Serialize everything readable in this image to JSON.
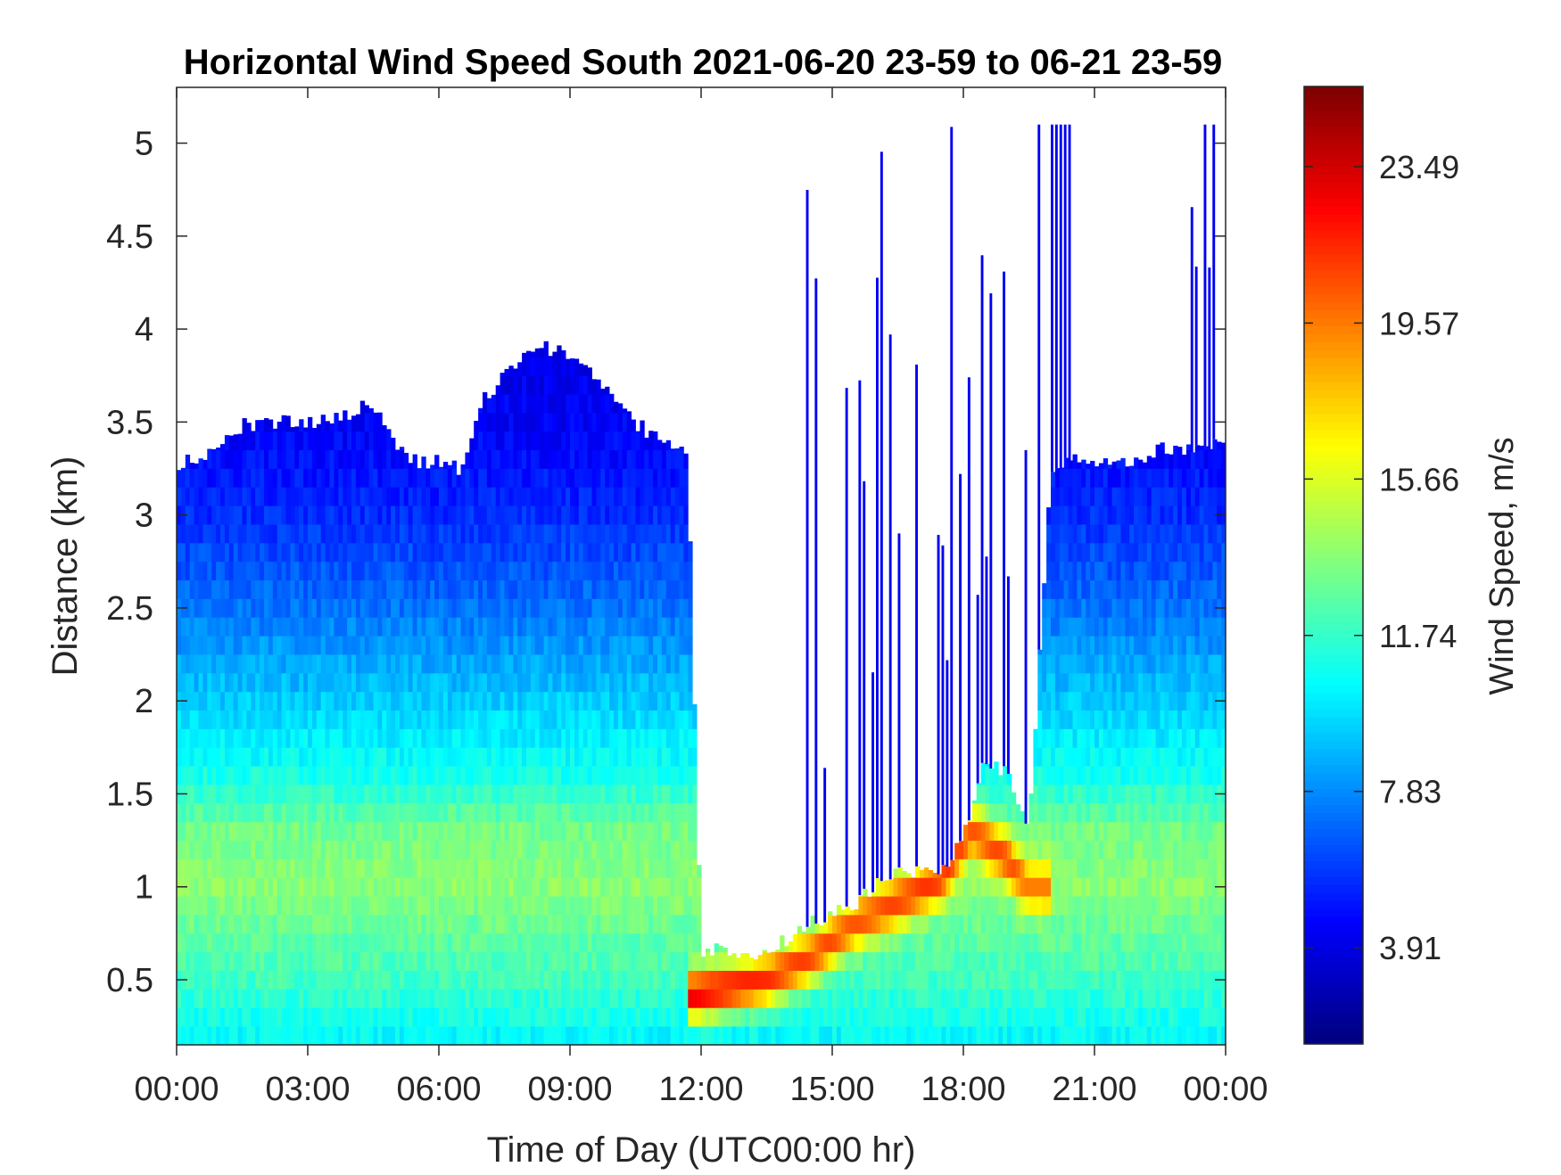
{
  "chart_data": {
    "type": "heatmap",
    "title": "Horizontal Wind Speed South 2021-06-20 23-59 to 06-21 23-59",
    "xlabel": "Time of Day (UTC00:00 hr)",
    "ylabel": "Distance (km)",
    "colorbar_label": "Wind Speed, m/s",
    "colormap": "jet",
    "xlim_hours": [
      0,
      24
    ],
    "ylim": [
      0.15,
      5.3
    ],
    "clim": [
      1.5,
      25.5
    ],
    "x_ticks": [
      {
        "value": 0,
        "label": "00:00"
      },
      {
        "value": 3,
        "label": "03:00"
      },
      {
        "value": 6,
        "label": "06:00"
      },
      {
        "value": 9,
        "label": "09:00"
      },
      {
        "value": 12,
        "label": "12:00"
      },
      {
        "value": 15,
        "label": "15:00"
      },
      {
        "value": 18,
        "label": "18:00"
      },
      {
        "value": 21,
        "label": "21:00"
      },
      {
        "value": 24,
        "label": "00:00"
      }
    ],
    "y_ticks": [
      {
        "value": 0.5,
        "label": "0.5"
      },
      {
        "value": 1,
        "label": "1"
      },
      {
        "value": 1.5,
        "label": "1.5"
      },
      {
        "value": 2,
        "label": "2"
      },
      {
        "value": 2.5,
        "label": "2.5"
      },
      {
        "value": 3,
        "label": "3"
      },
      {
        "value": 3.5,
        "label": "3.5"
      },
      {
        "value": 4,
        "label": "4"
      },
      {
        "value": 4.5,
        "label": "4.5"
      },
      {
        "value": 5,
        "label": "5"
      }
    ],
    "colorbar_ticks": [
      {
        "value": 3.91,
        "label": "3.91"
      },
      {
        "value": 7.83,
        "label": "7.83"
      },
      {
        "value": 11.74,
        "label": "11.74"
      },
      {
        "value": 15.66,
        "label": "15.66"
      },
      {
        "value": 19.57,
        "label": "19.57"
      },
      {
        "value": 23.49,
        "label": "23.49"
      }
    ],
    "data_ceiling_km": [
      {
        "hour": 0.0,
        "top": 3.28
      },
      {
        "hour": 0.5,
        "top": 3.3
      },
      {
        "hour": 1.0,
        "top": 3.38
      },
      {
        "hour": 1.5,
        "top": 3.48
      },
      {
        "hour": 2.0,
        "top": 3.5
      },
      {
        "hour": 2.5,
        "top": 3.5
      },
      {
        "hour": 3.0,
        "top": 3.5
      },
      {
        "hour": 3.5,
        "top": 3.5
      },
      {
        "hour": 4.0,
        "top": 3.55
      },
      {
        "hour": 4.5,
        "top": 3.6
      },
      {
        "hour": 5.0,
        "top": 3.38
      },
      {
        "hour": 5.5,
        "top": 3.28
      },
      {
        "hour": 6.0,
        "top": 3.3
      },
      {
        "hour": 6.5,
        "top": 3.25
      },
      {
        "hour": 7.0,
        "top": 3.62
      },
      {
        "hour": 7.5,
        "top": 3.75
      },
      {
        "hour": 8.0,
        "top": 3.88
      },
      {
        "hour": 8.5,
        "top": 3.9
      },
      {
        "hour": 9.0,
        "top": 3.85
      },
      {
        "hour": 9.5,
        "top": 3.75
      },
      {
        "hour": 10.0,
        "top": 3.62
      },
      {
        "hour": 10.5,
        "top": 3.5
      },
      {
        "hour": 11.0,
        "top": 3.4
      },
      {
        "hour": 11.5,
        "top": 3.38
      },
      {
        "hour": 11.7,
        "top": 3.3
      },
      {
        "hour": 12.0,
        "top": 0.66
      },
      {
        "hour": 12.5,
        "top": 0.66
      },
      {
        "hour": 13.0,
        "top": 0.6
      },
      {
        "hour": 13.5,
        "top": 0.66
      },
      {
        "hour": 14.0,
        "top": 0.72
      },
      {
        "hour": 14.5,
        "top": 0.8
      },
      {
        "hour": 15.0,
        "top": 0.85
      },
      {
        "hour": 15.5,
        "top": 0.9
      },
      {
        "hour": 16.0,
        "top": 1.0
      },
      {
        "hour": 16.5,
        "top": 1.08
      },
      {
        "hour": 17.0,
        "top": 1.08
      },
      {
        "hour": 17.5,
        "top": 1.1
      },
      {
        "hour": 18.0,
        "top": 1.25
      },
      {
        "hour": 18.5,
        "top": 1.7
      },
      {
        "hour": 19.0,
        "top": 1.6
      },
      {
        "hour": 19.5,
        "top": 1.3
      },
      {
        "hour": 20.0,
        "top": 3.2
      },
      {
        "hour": 20.5,
        "top": 3.3
      },
      {
        "hour": 21.0,
        "top": 3.3
      },
      {
        "hour": 21.5,
        "top": 3.3
      },
      {
        "hour": 22.0,
        "top": 3.3
      },
      {
        "hour": 22.5,
        "top": 3.35
      },
      {
        "hour": 23.0,
        "top": 3.35
      },
      {
        "hour": 23.5,
        "top": 3.38
      },
      {
        "hour": 24.0,
        "top": 3.38
      }
    ],
    "wind_speed_profile_ms": [
      {
        "distance_km": 0.2,
        "speed": 10.5
      },
      {
        "distance_km": 0.5,
        "speed": 12.0
      },
      {
        "distance_km": 0.8,
        "speed": 13.0
      },
      {
        "distance_km": 1.0,
        "speed": 13.8
      },
      {
        "distance_km": 1.3,
        "speed": 13.2
      },
      {
        "distance_km": 1.6,
        "speed": 11.0
      },
      {
        "distance_km": 2.0,
        "speed": 9.3
      },
      {
        "distance_km": 2.5,
        "speed": 7.2
      },
      {
        "distance_km": 3.0,
        "speed": 5.5
      },
      {
        "distance_km": 3.5,
        "speed": 4.3
      },
      {
        "distance_km": 4.0,
        "speed": 3.8
      }
    ],
    "high_speed_layer": [
      {
        "hour": 11.8,
        "distance_km": 0.42,
        "speed": 23.0
      },
      {
        "hour": 12.5,
        "distance_km": 0.45,
        "speed": 22.5
      },
      {
        "hour": 13.5,
        "distance_km": 0.5,
        "speed": 21.5
      },
      {
        "hour": 14.5,
        "distance_km": 0.62,
        "speed": 21.0
      },
      {
        "hour": 15.5,
        "distance_km": 0.8,
        "speed": 20.5
      },
      {
        "hour": 16.5,
        "distance_km": 0.92,
        "speed": 21.0
      },
      {
        "hour": 17.5,
        "distance_km": 1.05,
        "speed": 21.5
      },
      {
        "hour": 18.2,
        "distance_km": 1.3,
        "speed": 20.5
      },
      {
        "hour": 19.0,
        "distance_km": 1.15,
        "speed": 21.0
      },
      {
        "hour": 19.5,
        "distance_km": 1.0,
        "speed": 19.5
      }
    ]
  }
}
